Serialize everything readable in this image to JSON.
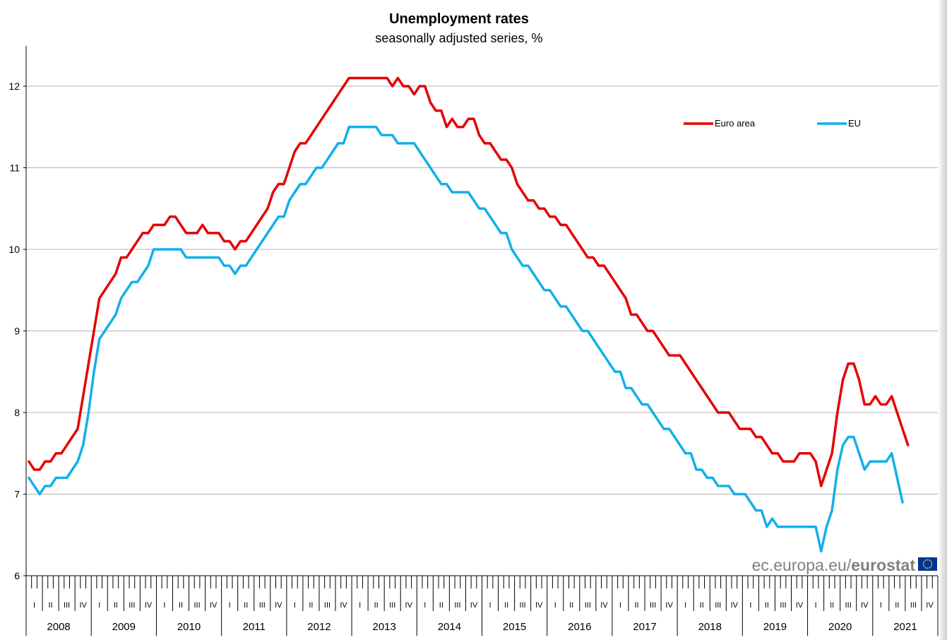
{
  "colors": {
    "euro_area": "#e60000",
    "eu": "#12b0e8",
    "grid": "#b3b3b3",
    "axis": "#000000",
    "watermark_text": "#808080",
    "eu_flag": "#003399",
    "eu_stars": "#ffcc00"
  },
  "watermark": {
    "prefix": "ec.europa.eu/",
    "brand": "eurostat"
  },
  "chart_data": {
    "type": "line",
    "title": "Unemployment rates",
    "subtitle": "seasonally adjusted series, %",
    "xlabel": "",
    "ylabel": "",
    "ylim": [
      6,
      12.5
    ],
    "yticks": [
      6,
      7,
      8,
      9,
      10,
      11,
      12
    ],
    "grid": true,
    "legend_position": "top-right",
    "x_start": "2008-01",
    "x_end": "2021-06",
    "quarter_labels": [
      "I",
      "II",
      "III",
      "IV"
    ],
    "years": [
      "2008",
      "2009",
      "2010",
      "2011",
      "2012",
      "2013",
      "2014",
      "2015",
      "2016",
      "2017",
      "2018",
      "2019",
      "2020",
      "2021"
    ],
    "series": [
      {
        "name": "Euro area",
        "color_key": "euro_area",
        "values": [
          7.4,
          7.3,
          7.3,
          7.4,
          7.4,
          7.5,
          7.5,
          7.6,
          7.7,
          7.8,
          8.2,
          8.6,
          9.0,
          9.4,
          9.5,
          9.6,
          9.7,
          9.9,
          9.9,
          10.0,
          10.1,
          10.2,
          10.2,
          10.3,
          10.3,
          10.3,
          10.4,
          10.4,
          10.3,
          10.2,
          10.2,
          10.2,
          10.3,
          10.2,
          10.2,
          10.2,
          10.1,
          10.1,
          10.0,
          10.1,
          10.1,
          10.2,
          10.3,
          10.4,
          10.5,
          10.7,
          10.8,
          10.8,
          11.0,
          11.2,
          11.3,
          11.3,
          11.4,
          11.5,
          11.6,
          11.7,
          11.8,
          11.9,
          12.0,
          12.1,
          12.1,
          12.1,
          12.1,
          12.1,
          12.1,
          12.1,
          12.1,
          12.0,
          12.1,
          12.0,
          12.0,
          11.9,
          12.0,
          12.0,
          11.8,
          11.7,
          11.7,
          11.5,
          11.6,
          11.5,
          11.5,
          11.6,
          11.6,
          11.4,
          11.3,
          11.3,
          11.2,
          11.1,
          11.1,
          11.0,
          10.8,
          10.7,
          10.6,
          10.6,
          10.5,
          10.5,
          10.4,
          10.4,
          10.3,
          10.3,
          10.2,
          10.1,
          10.0,
          9.9,
          9.9,
          9.8,
          9.8,
          9.7,
          9.6,
          9.5,
          9.4,
          9.2,
          9.2,
          9.1,
          9.0,
          9.0,
          8.9,
          8.8,
          8.7,
          8.7,
          8.7,
          8.6,
          8.5,
          8.4,
          8.3,
          8.2,
          8.1,
          8.0,
          8.0,
          8.0,
          7.9,
          7.8,
          7.8,
          7.8,
          7.7,
          7.7,
          7.6,
          7.5,
          7.5,
          7.4,
          7.4,
          7.4,
          7.5,
          7.5,
          7.5,
          7.4,
          7.1,
          7.3,
          7.5,
          8.0,
          8.4,
          8.6,
          8.6,
          8.4,
          8.1,
          8.1,
          8.2,
          8.1,
          8.1,
          8.2,
          8.0,
          7.8,
          7.6
        ]
      },
      {
        "name": "EU",
        "color_key": "eu",
        "values": [
          7.2,
          7.1,
          7.0,
          7.1,
          7.1,
          7.2,
          7.2,
          7.2,
          7.3,
          7.4,
          7.6,
          8.0,
          8.5,
          8.9,
          9.0,
          9.1,
          9.2,
          9.4,
          9.5,
          9.6,
          9.6,
          9.7,
          9.8,
          10.0,
          10.0,
          10.0,
          10.0,
          10.0,
          10.0,
          9.9,
          9.9,
          9.9,
          9.9,
          9.9,
          9.9,
          9.9,
          9.8,
          9.8,
          9.7,
          9.8,
          9.8,
          9.9,
          10.0,
          10.1,
          10.2,
          10.3,
          10.4,
          10.4,
          10.6,
          10.7,
          10.8,
          10.8,
          10.9,
          11.0,
          11.0,
          11.1,
          11.2,
          11.3,
          11.3,
          11.5,
          11.5,
          11.5,
          11.5,
          11.5,
          11.5,
          11.4,
          11.4,
          11.4,
          11.3,
          11.3,
          11.3,
          11.3,
          11.2,
          11.1,
          11.0,
          10.9,
          10.8,
          10.8,
          10.7,
          10.7,
          10.7,
          10.7,
          10.6,
          10.5,
          10.5,
          10.4,
          10.3,
          10.2,
          10.2,
          10.0,
          9.9,
          9.8,
          9.8,
          9.7,
          9.6,
          9.5,
          9.5,
          9.4,
          9.3,
          9.3,
          9.2,
          9.1,
          9.0,
          9.0,
          8.9,
          8.8,
          8.7,
          8.6,
          8.5,
          8.5,
          8.3,
          8.3,
          8.2,
          8.1,
          8.1,
          8.0,
          7.9,
          7.8,
          7.8,
          7.7,
          7.6,
          7.5,
          7.5,
          7.3,
          7.3,
          7.2,
          7.2,
          7.1,
          7.1,
          7.1,
          7.0,
          7.0,
          7.0,
          6.9,
          6.8,
          6.8,
          6.6,
          6.7,
          6.6,
          6.6,
          6.6,
          6.6,
          6.6,
          6.6,
          6.6,
          6.6,
          6.3,
          6.6,
          6.8,
          7.3,
          7.6,
          7.7,
          7.7,
          7.5,
          7.3,
          7.4,
          7.4,
          7.4,
          7.4,
          7.5,
          7.2,
          6.9
        ]
      }
    ]
  }
}
